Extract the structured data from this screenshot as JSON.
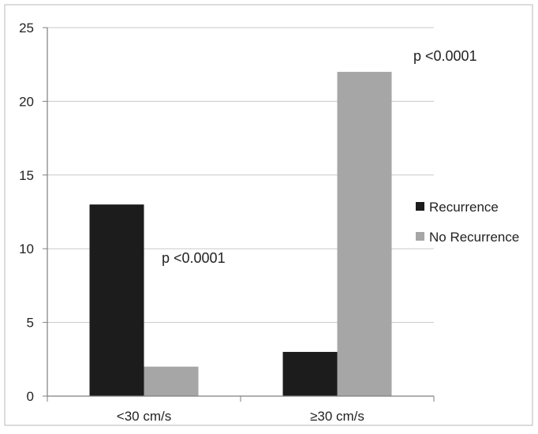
{
  "chart_data": {
    "type": "bar",
    "categories": [
      "<30 cm/s",
      "≥30 cm/s"
    ],
    "series": [
      {
        "name": "Recurrence",
        "values": [
          13,
          3
        ],
        "color": "#1c1c1c"
      },
      {
        "name": "No Recurrence",
        "values": [
          2,
          22
        ],
        "color": "#a6a6a6"
      }
    ],
    "title": "",
    "xlabel": "",
    "ylabel": "",
    "ylim": [
      0,
      25
    ],
    "yticks": [
      "0",
      "5",
      "10",
      "15",
      "20",
      "25"
    ],
    "grid": true,
    "legend_position": "right",
    "annotations": [
      {
        "text": "p <0.0001",
        "category": "<30 cm/s"
      },
      {
        "text": "p <0.0001",
        "category": "≥30 cm/s"
      }
    ]
  }
}
